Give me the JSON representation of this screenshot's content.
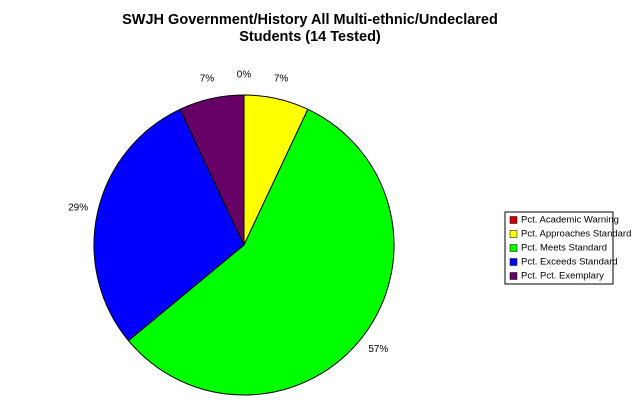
{
  "chart_data": {
    "type": "pie",
    "title": "SWJH Government/History All Multi-ethnic/Undeclared Students (14 Tested)",
    "categories": [
      "Pct. Academic Warning",
      "Pct. Approaches Standard",
      "Pct. Meets Standard",
      "Pct. Exceeds Standard",
      "Pct. Pct. Exemplary"
    ],
    "values": [
      0,
      7,
      57,
      29,
      7
    ],
    "value_labels": [
      "0%",
      "7%",
      "57%",
      "29%",
      "7%"
    ],
    "colors": [
      "#cc0000",
      "#ffff00",
      "#00ff00",
      "#0000ff",
      "#660066"
    ],
    "legend": "right"
  }
}
